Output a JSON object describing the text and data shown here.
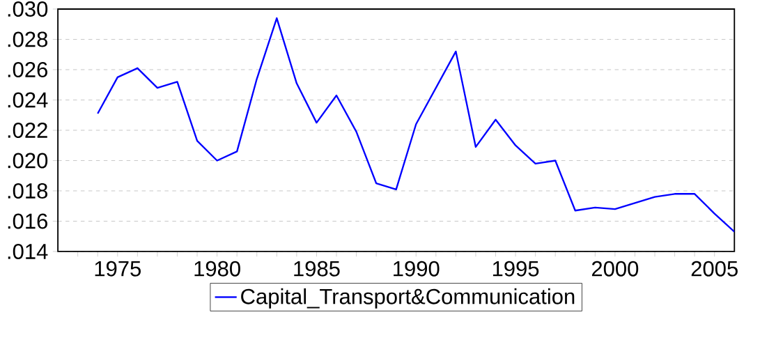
{
  "chart_data": {
    "type": "line",
    "x": [
      1974,
      1975,
      1976,
      1977,
      1978,
      1979,
      1980,
      1981,
      1982,
      1983,
      1984,
      1985,
      1986,
      1987,
      1988,
      1989,
      1990,
      1991,
      1992,
      1993,
      1994,
      1995,
      1996,
      1997,
      1998,
      1999,
      2000,
      2001,
      2002,
      2003,
      2004,
      2005,
      2006
    ],
    "series": [
      {
        "name": "Capital_Transport&Communication",
        "color": "#0000ff",
        "values": [
          0.0231,
          0.0255,
          0.0261,
          0.0248,
          0.0252,
          0.0213,
          0.02,
          0.0206,
          0.0254,
          0.0294,
          0.0251,
          0.0225,
          0.0243,
          0.0219,
          0.0185,
          0.0181,
          0.0224,
          0.0248,
          0.0272,
          0.0209,
          0.0227,
          0.021,
          0.0198,
          0.02,
          0.0167,
          0.0169,
          0.0168,
          0.0172,
          0.0176,
          0.0178,
          0.0178,
          0.0165,
          0.0153
        ]
      }
    ],
    "xlim": [
      1972,
      2006
    ],
    "xticks": [
      {
        "value": 1973,
        "label": null
      },
      {
        "value": 1974,
        "label": null
      },
      1975,
      {
        "value": 1976,
        "label": null
      },
      {
        "value": 1977,
        "label": null
      },
      {
        "value": 1978,
        "label": null
      },
      {
        "value": 1979,
        "label": null
      },
      1980,
      {
        "value": 1981,
        "label": null
      },
      {
        "value": 1982,
        "label": null
      },
      {
        "value": 1983,
        "label": null
      },
      {
        "value": 1984,
        "label": null
      },
      1985,
      {
        "value": 1986,
        "label": null
      },
      {
        "value": 1987,
        "label": null
      },
      {
        "value": 1988,
        "label": null
      },
      {
        "value": 1989,
        "label": null
      },
      1990,
      {
        "value": 1991,
        "label": null
      },
      {
        "value": 1992,
        "label": null
      },
      {
        "value": 1993,
        "label": null
      },
      {
        "value": 1994,
        "label": null
      },
      1995,
      {
        "value": 1996,
        "label": null
      },
      {
        "value": 1997,
        "label": null
      },
      {
        "value": 1998,
        "label": null
      },
      {
        "value": 1999,
        "label": null
      },
      2000,
      {
        "value": 2001,
        "label": null
      },
      {
        "value": 2002,
        "label": null
      },
      {
        "value": 2003,
        "label": null
      },
      {
        "value": 2004,
        "label": null
      },
      2005
    ],
    "ylim": [
      0.014,
      0.03
    ],
    "yticks": [
      {
        "value": 0.014,
        "label": ".014"
      },
      {
        "value": 0.016,
        "label": ".016"
      },
      {
        "value": 0.018,
        "label": ".018"
      },
      {
        "value": 0.02,
        "label": ".020"
      },
      {
        "value": 0.022,
        "label": ".022"
      },
      {
        "value": 0.024,
        "label": ".024"
      },
      {
        "value": 0.026,
        "label": ".026"
      },
      {
        "value": 0.028,
        "label": ".028"
      },
      {
        "value": 0.03,
        "label": ".030"
      }
    ],
    "grid": "y",
    "legend": "bottom",
    "marker": "none",
    "line_style": "solid"
  }
}
